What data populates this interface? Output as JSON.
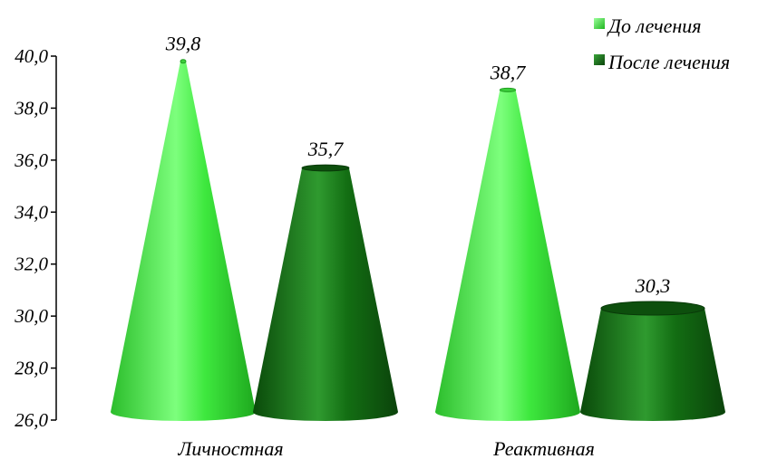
{
  "chart_data": {
    "type": "bar",
    "shape": "cone",
    "categories": [
      "Личностная",
      "Реактивная"
    ],
    "series": [
      {
        "name": "До лечения",
        "values": [
          39.8,
          38.7
        ],
        "value_labels": [
          "39,8",
          "38,7"
        ],
        "color": "#3fe03f"
      },
      {
        "name": "После лечения",
        "values": [
          35.7,
          30.3
        ],
        "value_labels": [
          "35,7",
          "30,3"
        ],
        "color": "#0f5f0f"
      }
    ],
    "ylim": [
      26.0,
      40.0
    ],
    "yticks": [
      26.0,
      28.0,
      30.0,
      32.0,
      34.0,
      36.0,
      38.0,
      40.0
    ],
    "ytick_labels": [
      "26,0",
      "28,0",
      "30,0",
      "32,0",
      "34,0",
      "36,0",
      "38,0",
      "40,0"
    ],
    "cone_apex_value": 40.2,
    "grid": false,
    "legend_position": "top-right",
    "title": "",
    "xlabel": "",
    "ylabel": ""
  }
}
